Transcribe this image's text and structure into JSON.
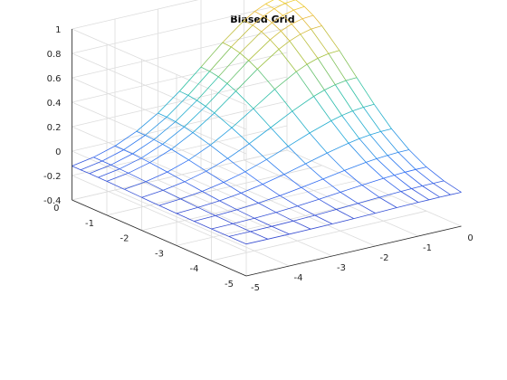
{
  "chart_data": {
    "type": "surface-mesh",
    "title": "Biased Grid",
    "xlabel": "",
    "ylabel": "",
    "zlabel": "",
    "x_ticks": [
      "-5",
      "-4",
      "-3",
      "-2",
      "-1",
      "0"
    ],
    "y_ticks": [
      "-5",
      "-4",
      "-3",
      "-2",
      "-1",
      "0"
    ],
    "z_ticks": [
      "-0.4",
      "-0.2",
      "0",
      "0.2",
      "0.4",
      "0.6",
      "0.8",
      "1"
    ],
    "x_range": [
      -5,
      0
    ],
    "y_range": [
      -5,
      0
    ],
    "z_range": [
      -0.4,
      1
    ],
    "grid": true,
    "colormap": [
      "#3e26a8",
      "#2f6ef5",
      "#1fa8d9",
      "#2fc2a0",
      "#a3c13a",
      "#e9b83a",
      "#f9fb15"
    ],
    "grid_x": [
      -5,
      -4.5,
      -4,
      -3.5,
      -3,
      -2.5,
      -2,
      -1.5,
      -1,
      -0.75,
      -0.5,
      -0.25,
      0
    ],
    "grid_y": [
      -5,
      -4.5,
      -4,
      -3.5,
      -3,
      -2.5,
      -2,
      -1.5,
      -1,
      -0.75,
      -0.5,
      -0.25,
      0
    ],
    "surface": "z = exp(-(x^2 + y^2)/8) - 0.0"
  }
}
